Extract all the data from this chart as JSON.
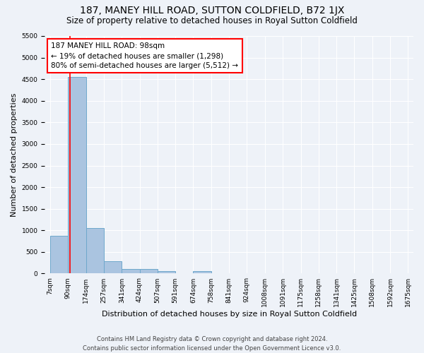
{
  "title": "187, MANEY HILL ROAD, SUTTON COLDFIELD, B72 1JX",
  "subtitle": "Size of property relative to detached houses in Royal Sutton Coldfield",
  "xlabel": "Distribution of detached houses by size in Royal Sutton Coldfield",
  "ylabel": "Number of detached properties",
  "footer_line1": "Contains HM Land Registry data © Crown copyright and database right 2024.",
  "footer_line2": "Contains public sector information licensed under the Open Government Licence v3.0.",
  "annotation_line1": "187 MANEY HILL ROAD: 98sqm",
  "annotation_line2": "← 19% of detached houses are smaller (1,298)",
  "annotation_line3": "80% of semi-detached houses are larger (5,512) →",
  "bar_edges": [
    7,
    90,
    174,
    257,
    341,
    424,
    507,
    591,
    674,
    758,
    841,
    924,
    1008,
    1091,
    1175,
    1258,
    1341,
    1425,
    1508,
    1592,
    1675
  ],
  "bar_values": [
    880,
    4550,
    1050,
    280,
    100,
    100,
    50,
    0,
    50,
    0,
    0,
    0,
    0,
    0,
    0,
    0,
    0,
    0,
    0,
    0
  ],
  "bar_color": "#aac4e0",
  "bar_edge_color": "#6fa8cc",
  "red_line_x": 98,
  "ylim": [
    0,
    5500
  ],
  "yticks": [
    0,
    500,
    1000,
    1500,
    2000,
    2500,
    3000,
    3500,
    4000,
    4500,
    5000,
    5500
  ],
  "background_color": "#eef2f8",
  "grid_color": "#ffffff",
  "title_fontsize": 10,
  "subtitle_fontsize": 8.5,
  "annotation_fontsize": 7.5,
  "tick_labelsize": 6.5,
  "ylabel_fontsize": 8,
  "xlabel_fontsize": 8,
  "footer_fontsize": 6
}
